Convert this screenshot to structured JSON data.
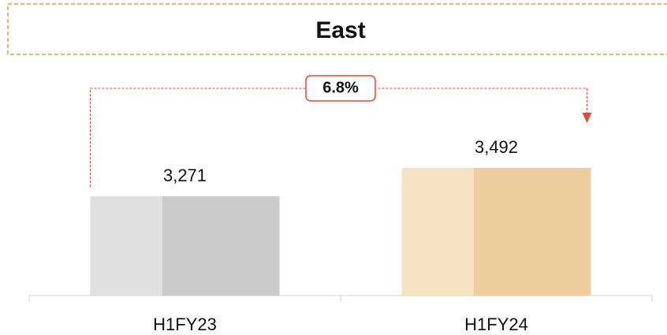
{
  "chart_data": {
    "type": "bar",
    "title": "East",
    "categories": [
      "H1FY23",
      "H1FY24"
    ],
    "values": [
      3271,
      3492
    ],
    "value_labels": [
      "3,271",
      "3,492"
    ],
    "colors": [
      [
        "#e0e0e0",
        "#cbcbcb"
      ],
      [
        "#f7e3c4",
        "#eecd9f"
      ]
    ],
    "ylim": [
      2500,
      4000
    ],
    "annotation": "6.8%"
  }
}
